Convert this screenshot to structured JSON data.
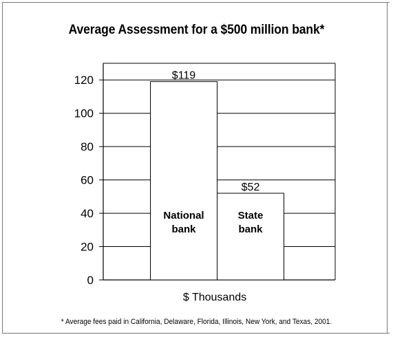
{
  "chart_data": {
    "type": "bar",
    "title": "Average Assessment for a $500 million bank*",
    "xlabel": "$ Thousands",
    "ylabel": "",
    "ylim": [
      0,
      130
    ],
    "yticks": [
      0,
      20,
      40,
      60,
      80,
      100,
      120
    ],
    "categories": [
      "National bank",
      "State bank"
    ],
    "category_lines": [
      [
        "National",
        "bank"
      ],
      [
        "State",
        "bank"
      ]
    ],
    "values": [
      119,
      52
    ],
    "data_labels": [
      "$119",
      "$52"
    ],
    "grid": true,
    "legend": "none",
    "bar_fill": "#ffffff",
    "line_color": "#000000"
  },
  "footnote": "* Average fees paid in California, Delaware, Florida, Illinois, New York, and Texas, 2001."
}
